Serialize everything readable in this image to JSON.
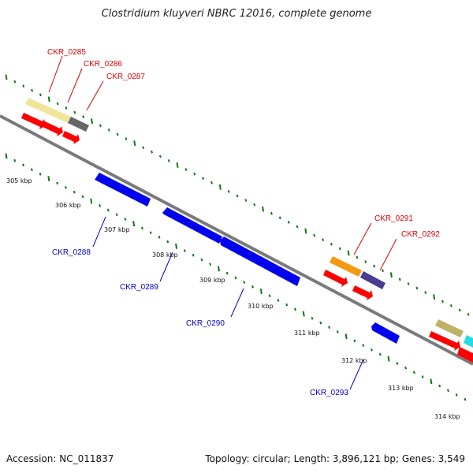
{
  "title": "Clostridium kluyveri NBRC 12016, complete genome",
  "footer": {
    "accession": "Accession: NC_011837",
    "summary": "Topology: circular; Length: 3,896,121 bp; Genes: 3,549"
  },
  "colors": {
    "backbone": "#7a7a7a",
    "tick": "#117711",
    "red_label": "#dd0000",
    "blue_label": "#0000cc",
    "red_arrow": "#ff0000",
    "blue_arrow": "#0000ee"
  },
  "scale": [
    "305 kbp",
    "306 kbp",
    "307 kbp",
    "308 kbp",
    "309 kbp",
    "310 kbp",
    "311 kbp",
    "312 kbp",
    "313 kbp",
    "314 kbp"
  ],
  "genes_forward": [
    {
      "name": "CKR_0285"
    },
    {
      "name": "CKR_0286"
    },
    {
      "name": "CKR_0287"
    },
    {
      "name": "CKR_0291"
    },
    {
      "name": "CKR_0292"
    }
  ],
  "genes_reverse": [
    {
      "name": "CKR_0288"
    },
    {
      "name": "CKR_0289"
    },
    {
      "name": "CKR_0290"
    },
    {
      "name": "CKR_0293"
    }
  ]
}
